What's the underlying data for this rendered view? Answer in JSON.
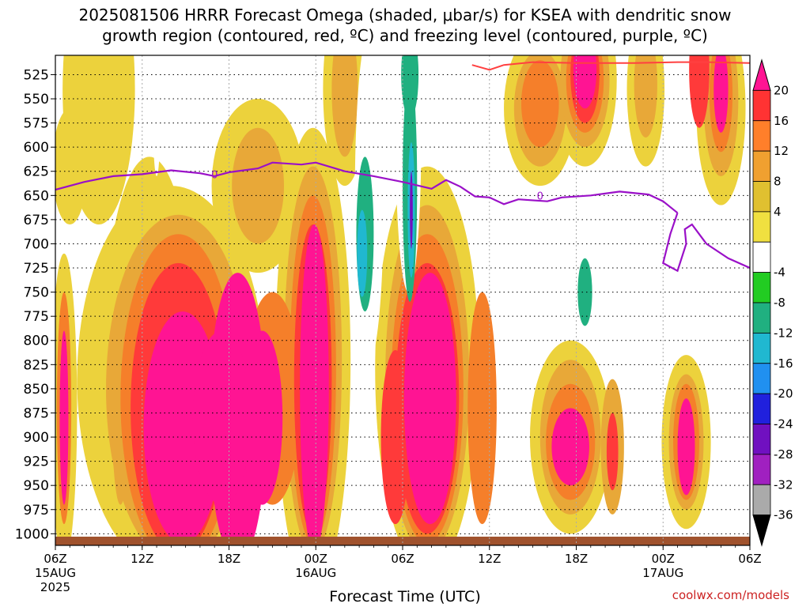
{
  "chart_data": {
    "type": "heatmap",
    "title_line1": "2025081506 HRRR Forecast Omega (shaded, μbar/s) for KSEA with dendritic snow",
    "title_line2": "growth region (contoured, red, ºC) and freezing level (contoured, purple, ºC)",
    "xlabel": "Forecast Time (UTC)",
    "y_ticks": [
      "525",
      "550",
      "575",
      "600",
      "625",
      "650",
      "675",
      "700",
      "725",
      "750",
      "775",
      "800",
      "825",
      "850",
      "875",
      "900",
      "925",
      "950",
      "975",
      "1000"
    ],
    "x_ticks": [
      {
        "label": "06Z",
        "sub1": "15AUG",
        "sub2": "2025",
        "hours": 0
      },
      {
        "label": "12Z",
        "sub1": "",
        "sub2": "",
        "hours": 6
      },
      {
        "label": "18Z",
        "sub1": "",
        "sub2": "",
        "hours": 12
      },
      {
        "label": "00Z",
        "sub1": "16AUG",
        "sub2": "",
        "hours": 18
      },
      {
        "label": "06Z",
        "sub1": "",
        "sub2": "",
        "hours": 24
      },
      {
        "label": "12Z",
        "sub1": "",
        "sub2": "",
        "hours": 30
      },
      {
        "label": "18Z",
        "sub1": "",
        "sub2": "",
        "hours": 36
      },
      {
        "label": "00Z",
        "sub1": "17AUG",
        "sub2": "",
        "hours": 42
      },
      {
        "label": "06Z",
        "sub1": "",
        "sub2": "",
        "hours": 48
      }
    ],
    "colorbar": {
      "labels": [
        "20",
        "16",
        "12",
        "8",
        "4",
        "-4",
        "-8",
        "-12",
        "-16",
        "-20",
        "-24",
        "-28",
        "-32",
        "-36"
      ],
      "colors": [
        "#ff1493",
        "#ff3333",
        "#ff7f2a",
        "#f0a030",
        "#e0c030",
        "#f0e040",
        "#ffffff",
        "#22cc22",
        "#20b080",
        "#20b8d0",
        "#2090f0",
        "#2020dd",
        "#7010c0",
        "#a020c0",
        "#aaaaaa",
        "#000000"
      ]
    },
    "freezing_level_label": "0",
    "freezing_level": [
      [
        0,
        644
      ],
      [
        2,
        636
      ],
      [
        4,
        630
      ],
      [
        6,
        628
      ],
      [
        8,
        624
      ],
      [
        10,
        627
      ],
      [
        11,
        630
      ],
      [
        12,
        626
      ],
      [
        14,
        622
      ],
      [
        15,
        616
      ],
      [
        17,
        618
      ],
      [
        18,
        616
      ],
      [
        20,
        625
      ],
      [
        22,
        630
      ],
      [
        24,
        636
      ],
      [
        26,
        643
      ],
      [
        27,
        634
      ],
      [
        28,
        641
      ],
      [
        29,
        651
      ],
      [
        30,
        652
      ],
      [
        31,
        659
      ],
      [
        32,
        654
      ],
      [
        34,
        656
      ],
      [
        35,
        652
      ],
      [
        37,
        650
      ],
      [
        39,
        646
      ],
      [
        41,
        649
      ],
      [
        42,
        656
      ],
      [
        43,
        668
      ]
    ],
    "fz_loop": [
      [
        43,
        668
      ],
      [
        42.5,
        690
      ],
      [
        42,
        720
      ],
      [
        43,
        728
      ],
      [
        43.6,
        700
      ],
      [
        43.5,
        685
      ],
      [
        44,
        680
      ],
      [
        45,
        700
      ],
      [
        46.5,
        715
      ],
      [
        48,
        725
      ]
    ],
    "dgz_level": 510,
    "ground_color": "#a0522d",
    "omega_blobs": [
      {
        "c": [
          0.6,
          870
        ],
        "rx": 0.9,
        "ry": 160,
        "v": 4
      },
      {
        "c": [
          0.6,
          870
        ],
        "rx": 0.5,
        "ry": 120,
        "v": 12
      },
      {
        "c": [
          0.6,
          880
        ],
        "rx": 0.3,
        "ry": 90,
        "v": 20
      },
      {
        "c": [
          4.5,
          860
        ],
        "rx": 1.2,
        "ry": 140,
        "v": 4
      },
      {
        "c": [
          4.5,
          870
        ],
        "rx": 0.6,
        "ry": 100,
        "v": 10
      },
      {
        "c": [
          6.5,
          820
        ],
        "rx": 3.2,
        "ry": 210,
        "v": 4
      },
      {
        "c": [
          8.0,
          840
        ],
        "rx": 6.5,
        "ry": 200,
        "v": 4
      },
      {
        "c": [
          8.5,
          850
        ],
        "rx": 5.0,
        "ry": 180,
        "v": 8
      },
      {
        "c": [
          8.5,
          860
        ],
        "rx": 4.0,
        "ry": 170,
        "v": 12
      },
      {
        "c": [
          8.5,
          870
        ],
        "rx": 3.3,
        "ry": 150,
        "v": 16
      },
      {
        "c": [
          8.8,
          890
        ],
        "rx": 2.7,
        "ry": 120,
        "v": 20
      },
      {
        "c": [
          12.6,
          880
        ],
        "rx": 2.0,
        "ry": 150,
        "v": 20
      },
      {
        "c": [
          11.5,
          880
        ],
        "rx": 2.0,
        "ry": 90,
        "v": 20
      },
      {
        "c": [
          17.8,
          820
        ],
        "rx": 2.6,
        "ry": 240,
        "v": 4
      },
      {
        "c": [
          17.8,
          820
        ],
        "rx": 2.0,
        "ry": 200,
        "v": 8
      },
      {
        "c": [
          17.8,
          830
        ],
        "rx": 1.6,
        "ry": 180,
        "v": 12
      },
      {
        "c": [
          17.8,
          840
        ],
        "rx": 1.3,
        "ry": 160,
        "v": 16
      },
      {
        "c": [
          17.9,
          850
        ],
        "rx": 1.0,
        "ry": 170,
        "v": 20
      },
      {
        "c": [
          15,
          860
        ],
        "rx": 2.0,
        "ry": 110,
        "v": 12
      },
      {
        "c": [
          14.3,
          880
        ],
        "rx": 1.4,
        "ry": 90,
        "v": 20
      },
      {
        "c": [
          14.0,
          640
        ],
        "rx": 3.2,
        "ry": 90,
        "v": 4
      },
      {
        "c": [
          14.0,
          640
        ],
        "rx": 1.8,
        "ry": 60,
        "v": 8
      },
      {
        "c": [
          25.7,
          830
        ],
        "rx": 3.6,
        "ry": 210,
        "v": 4
      },
      {
        "c": [
          25.7,
          840
        ],
        "rx": 2.9,
        "ry": 180,
        "v": 8
      },
      {
        "c": [
          25.7,
          850
        ],
        "rx": 2.5,
        "ry": 160,
        "v": 12
      },
      {
        "c": [
          25.7,
          860
        ],
        "rx": 2.2,
        "ry": 140,
        "v": 16
      },
      {
        "c": [
          25.9,
          860
        ],
        "rx": 1.8,
        "ry": 130,
        "v": 20
      },
      {
        "c": [
          23.5,
          900
        ],
        "rx": 1.0,
        "ry": 90,
        "v": 16
      },
      {
        "c": [
          29.5,
          870
        ],
        "rx": 1.0,
        "ry": 120,
        "v": 12
      },
      {
        "c": [
          35.6,
          900
        ],
        "rx": 2.8,
        "ry": 100,
        "v": 4
      },
      {
        "c": [
          35.6,
          900
        ],
        "rx": 2.1,
        "ry": 80,
        "v": 8
      },
      {
        "c": [
          35.6,
          905
        ],
        "rx": 1.7,
        "ry": 60,
        "v": 12
      },
      {
        "c": [
          35.6,
          910
        ],
        "rx": 1.3,
        "ry": 40,
        "v": 20
      },
      {
        "c": [
          38.5,
          910
        ],
        "rx": 0.8,
        "ry": 70,
        "v": 8
      },
      {
        "c": [
          38.5,
          915
        ],
        "rx": 0.4,
        "ry": 40,
        "v": 16
      },
      {
        "c": [
          43.6,
          905
        ],
        "rx": 1.7,
        "ry": 90,
        "v": 4
      },
      {
        "c": [
          43.6,
          905
        ],
        "rx": 1.2,
        "ry": 70,
        "v": 8
      },
      {
        "c": [
          43.6,
          905
        ],
        "rx": 0.9,
        "ry": 60,
        "v": 12
      },
      {
        "c": [
          43.6,
          910
        ],
        "rx": 0.6,
        "ry": 50,
        "v": 20
      },
      {
        "c": [
          33.5,
          560
        ],
        "rx": 2.5,
        "ry": 80,
        "v": 4
      },
      {
        "c": [
          33.5,
          560
        ],
        "rx": 1.8,
        "ry": 60,
        "v": 8
      },
      {
        "c": [
          33.5,
          555
        ],
        "rx": 1.3,
        "ry": 45,
        "v": 12
      },
      {
        "c": [
          36.6,
          530
        ],
        "rx": 2.2,
        "ry": 90,
        "v": 4
      },
      {
        "c": [
          36.6,
          530
        ],
        "rx": 1.7,
        "ry": 70,
        "v": 8
      },
      {
        "c": [
          36.6,
          530
        ],
        "rx": 1.3,
        "ry": 55,
        "v": 12
      },
      {
        "c": [
          36.6,
          525
        ],
        "rx": 1.0,
        "ry": 50,
        "v": 16
      },
      {
        "c": [
          36.6,
          520
        ],
        "rx": 0.8,
        "ry": 40,
        "v": 20
      },
      {
        "c": [
          40.8,
          540
        ],
        "rx": 1.3,
        "ry": 80,
        "v": 4
      },
      {
        "c": [
          40.8,
          535
        ],
        "rx": 0.8,
        "ry": 55,
        "v": 8
      },
      {
        "c": [
          46.0,
          560
        ],
        "rx": 1.7,
        "ry": 100,
        "v": 4
      },
      {
        "c": [
          46.0,
          550
        ],
        "rx": 1.2,
        "ry": 80,
        "v": 8
      },
      {
        "c": [
          46.0,
          545
        ],
        "rx": 0.8,
        "ry": 60,
        "v": 12
      },
      {
        "c": [
          46.0,
          540
        ],
        "rx": 0.5,
        "ry": 45,
        "v": 20
      },
      {
        "c": [
          44.5,
          520
        ],
        "rx": 0.7,
        "ry": 60,
        "v": 16
      },
      {
        "c": [
          3.0,
          540
        ],
        "rx": 2.5,
        "ry": 140,
        "v": 4
      },
      {
        "c": [
          1.0,
          620
        ],
        "rx": 1.2,
        "ry": 60,
        "v": 4
      },
      {
        "c": [
          20.0,
          540
        ],
        "rx": 1.5,
        "ry": 100,
        "v": 4
      },
      {
        "c": [
          20.0,
          540
        ],
        "rx": 0.9,
        "ry": 70,
        "v": 8
      }
    ],
    "omega_neg_blobs": [
      {
        "c": [
          7.0,
          570
        ],
        "rx": 0.25,
        "ry": 60,
        "v": -4
      },
      {
        "c": [
          21.7,
          650
        ],
        "rx": 1.0,
        "ry": 170,
        "v": -4
      },
      {
        "c": [
          21.4,
          690
        ],
        "rx": 0.6,
        "ry": 80,
        "v": -8
      },
      {
        "c": [
          21.2,
          710
        ],
        "rx": 0.35,
        "ry": 45,
        "v": -12
      },
      {
        "c": [
          24.4,
          580
        ],
        "rx": 0.9,
        "ry": 170,
        "v": -4
      },
      {
        "c": [
          24.5,
          640
        ],
        "rx": 0.5,
        "ry": 120,
        "v": -8
      },
      {
        "c": [
          24.6,
          665
        ],
        "rx": 0.25,
        "ry": 70,
        "v": -12
      },
      {
        "c": [
          24.6,
          665
        ],
        "rx": 0.1,
        "ry": 40,
        "v": -24
      },
      {
        "c": [
          24.5,
          525
        ],
        "rx": 0.6,
        "ry": 45,
        "v": -8
      },
      {
        "c": [
          35.0,
          715
        ],
        "rx": 0.6,
        "ry": 40,
        "v": -4
      },
      {
        "c": [
          36.2,
          735
        ],
        "rx": 0.9,
        "ry": 50,
        "v": -4
      },
      {
        "c": [
          36.6,
          750
        ],
        "rx": 0.5,
        "ry": 35,
        "v": -8
      },
      {
        "c": [
          41.0,
          840
        ],
        "rx": 0.25,
        "ry": 45,
        "v": -4
      },
      {
        "c": [
          45.0,
          780
        ],
        "rx": 0.35,
        "ry": 60,
        "v": -4
      }
    ]
  }
}
